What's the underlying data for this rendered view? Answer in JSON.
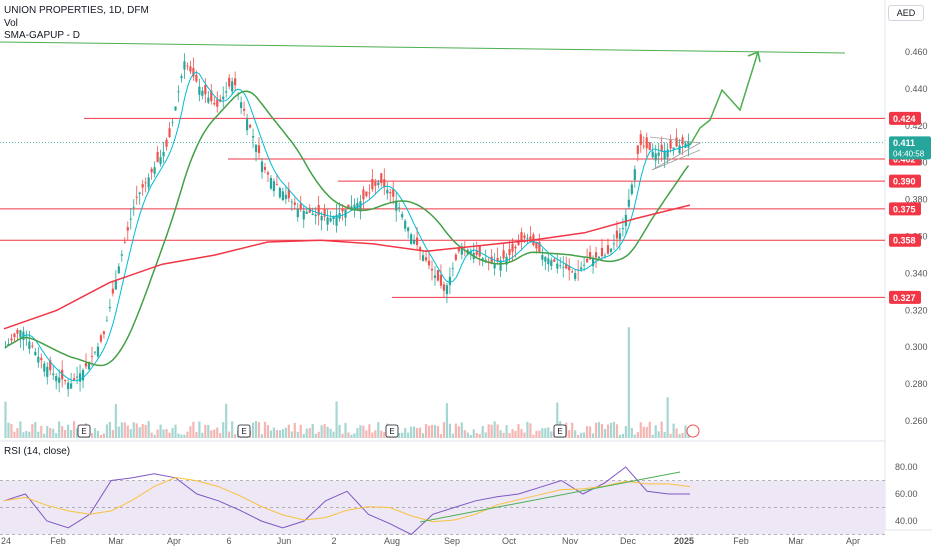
{
  "header": {
    "title": "UNION PROPERTIES, 1D, DFM",
    "volume_label": "Vol",
    "indicator_label": "SMA-GAPUP - D",
    "currency": "AED"
  },
  "rsi": {
    "label": "RSI (14, close)",
    "levels": [
      "80.00",
      "60.00",
      "40.00"
    ]
  },
  "price_axis": {
    "ticks": [
      "0.460",
      "0.440",
      "0.420",
      "0.400",
      "0.380",
      "0.360",
      "0.340",
      "0.320",
      "0.300",
      "0.280",
      "0.260"
    ]
  },
  "time_axis": {
    "labels": [
      "24",
      "Feb",
      "Mar",
      "Apr",
      "6",
      "Jun",
      "2",
      "Aug",
      "Sep",
      "Oct",
      "Nov",
      "Dec",
      "2025",
      "Feb",
      "Mar",
      "Apr"
    ]
  },
  "earnings_markers": [
    "E",
    "E",
    "E",
    "E"
  ],
  "price_labels": {
    "current_price": "0.411",
    "countdown": "04:40:58"
  },
  "horizontal_levels": [
    {
      "price": 0.424,
      "label": "0.424"
    },
    {
      "price": 0.402,
      "label": "0.402"
    },
    {
      "price": 0.39,
      "label": "0.390"
    },
    {
      "price": 0.375,
      "label": "0.375"
    },
    {
      "price": 0.358,
      "label": "0.358"
    },
    {
      "price": 0.327,
      "label": "0.327"
    }
  ],
  "colors": {
    "candle_up": "#26a69a",
    "candle_down": "#ef5350",
    "level_line": "#f23645",
    "trend_green": "#4caf50",
    "sma_slow": "#f23645",
    "sma_mid": "#43a047",
    "sma_fast": "#00bcd4",
    "rsi_line": "#7e57c2",
    "rsi_ma": "#f9c23c",
    "rsi_band": "#ede7f6"
  },
  "chart_data": {
    "type": "candlestick",
    "title": "UNION PROPERTIES, 1D, DFM",
    "x_range": [
      "2024-01",
      "2025-04"
    ],
    "y_range": [
      0.255,
      0.475
    ],
    "close_series": [
      0.3,
      0.31,
      0.295,
      0.285,
      0.28,
      0.29,
      0.305,
      0.345,
      0.38,
      0.395,
      0.41,
      0.455,
      0.44,
      0.43,
      0.445,
      0.42,
      0.395,
      0.385,
      0.375,
      0.372,
      0.37,
      0.375,
      0.38,
      0.39,
      0.38,
      0.36,
      0.345,
      0.33,
      0.355,
      0.35,
      0.345,
      0.35,
      0.36,
      0.35,
      0.345,
      0.34,
      0.348,
      0.35,
      0.365,
      0.41,
      0.405,
      0.408,
      0.411
    ],
    "sma_slow": [
      0.31,
      0.32,
      0.335,
      0.345,
      0.35,
      0.357,
      0.358,
      0.356,
      0.352,
      0.355,
      0.358,
      0.362,
      0.37,
      0.377
    ],
    "rsi": {
      "values": [
        55,
        60,
        40,
        35,
        45,
        70,
        72,
        75,
        72,
        60,
        55,
        48,
        40,
        35,
        40,
        55,
        62,
        45,
        38,
        30,
        45,
        50,
        55,
        58,
        60,
        65,
        70,
        60,
        68,
        80,
        62,
        60,
        60
      ],
      "levels": [
        80,
        60,
        40
      ]
    }
  }
}
